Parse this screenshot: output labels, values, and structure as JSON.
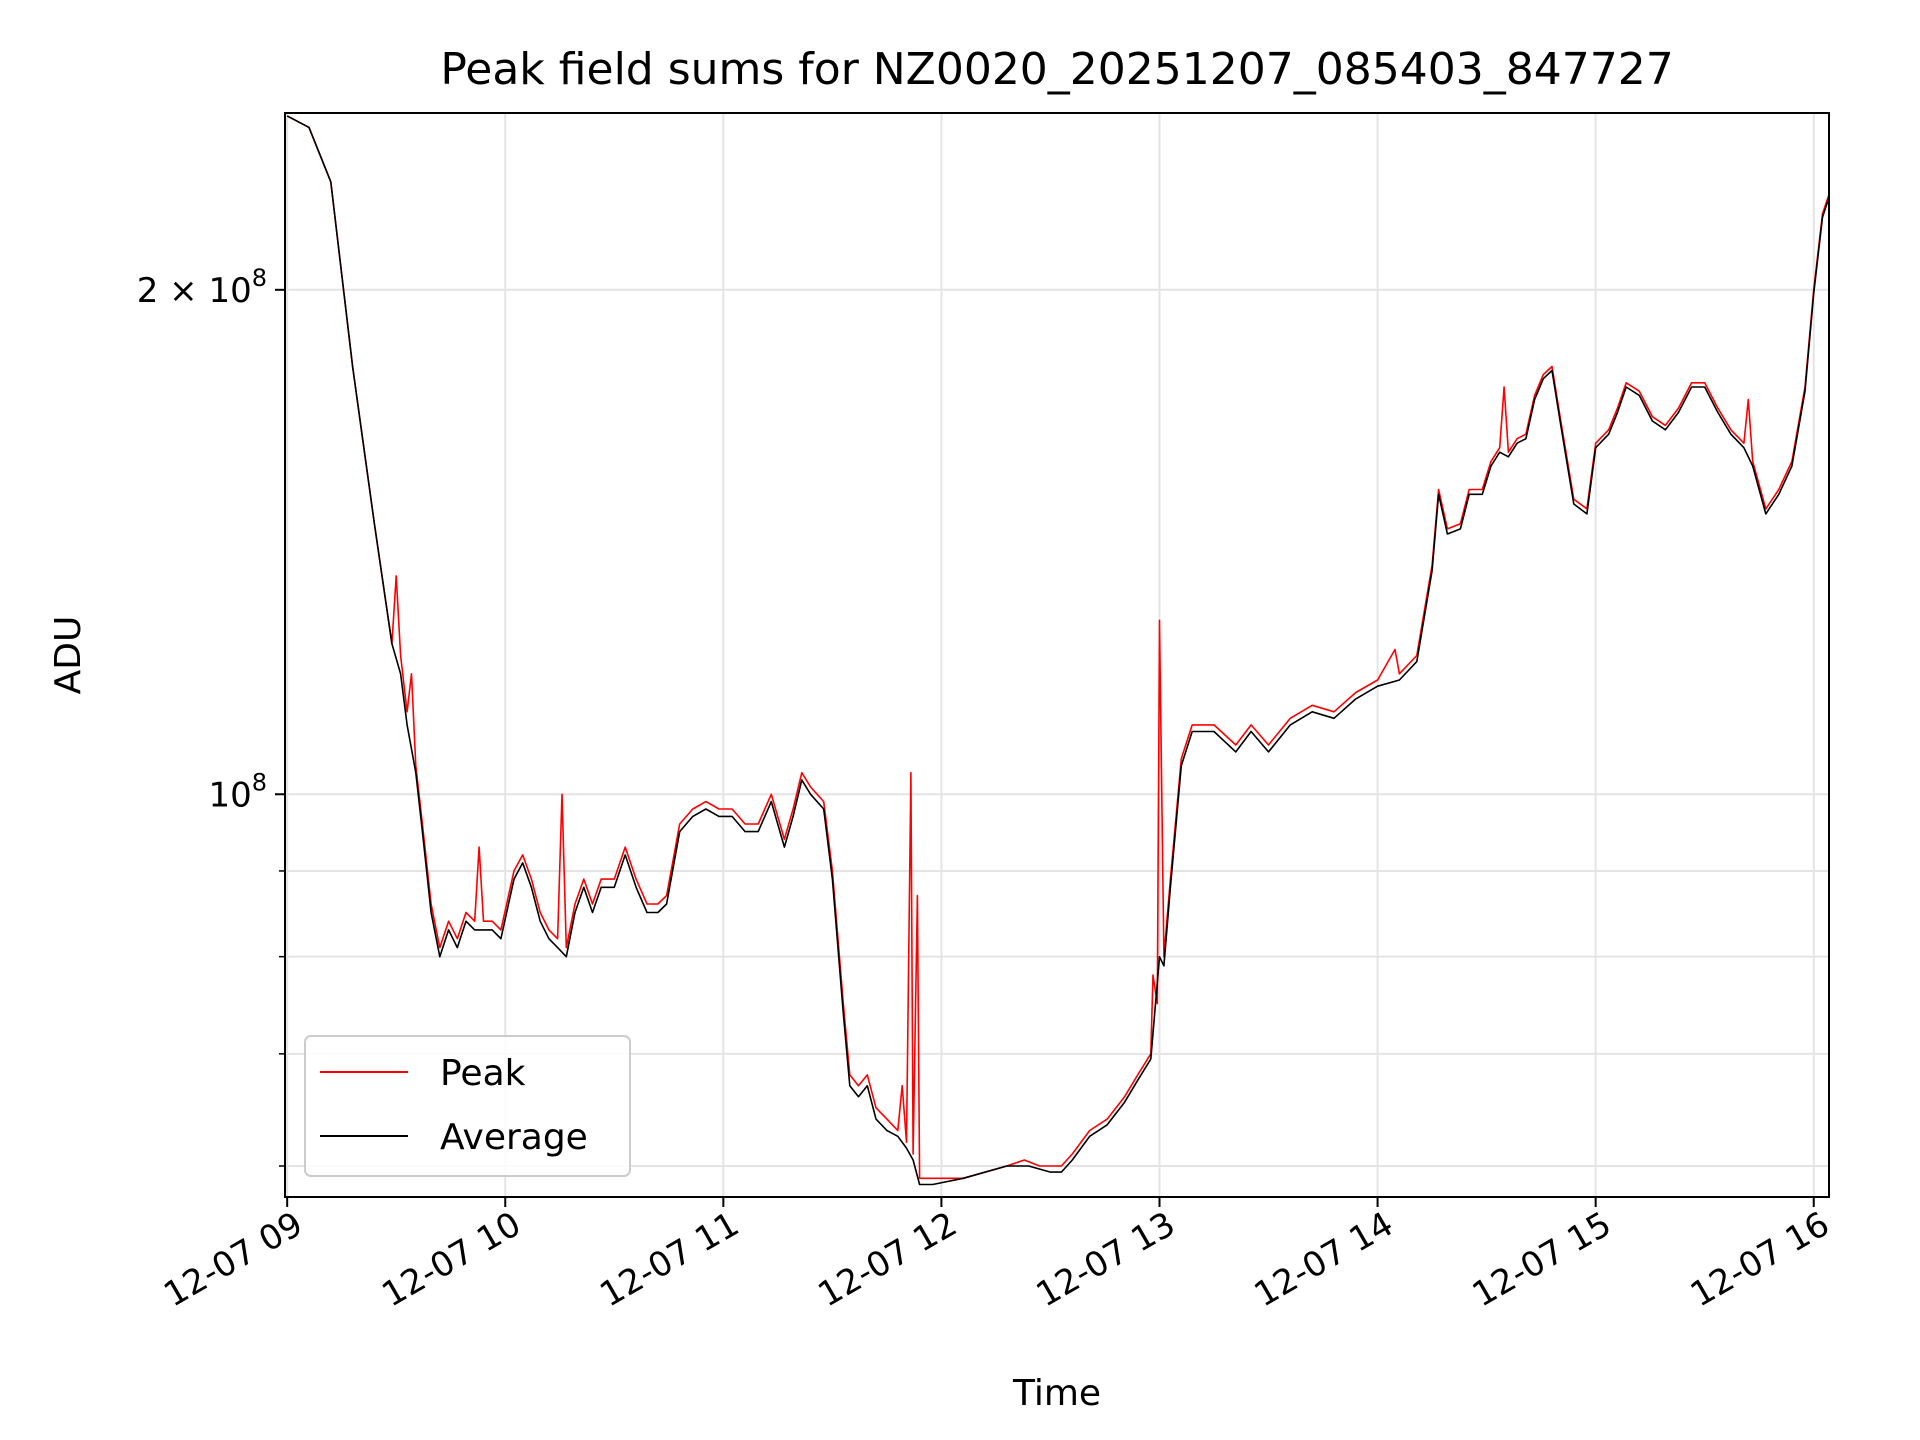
{
  "chart_data": {
    "type": "line",
    "title": "Peak field sums for NZ0020_20251207_085403_847727",
    "xlabel": "Time",
    "ylabel": "ADU",
    "y_scale": "log",
    "x_ticks": [
      "12-07 09",
      "12-07 10",
      "12-07 11",
      "12-07 12",
      "12-07 13",
      "12-07 14",
      "12-07 15",
      "12-07 16"
    ],
    "x_tick_hours": [
      9,
      10,
      11,
      12,
      13,
      14,
      15,
      16
    ],
    "xlim_hours": [
      8.99,
      16.07
    ],
    "y_major_ticks": [
      {
        "value": 200000000,
        "label": "2 × 10^8",
        "base": "2 × 10",
        "exp": "8"
      },
      {
        "value": 100000000,
        "label": "10^8",
        "base": "10",
        "exp": "8"
      }
    ],
    "y_minor_ticks": [
      60000000,
      70000000,
      80000000,
      90000000
    ],
    "ylim": [
      57500000,
      255000000
    ],
    "grid": true,
    "legend_position": "lower-left",
    "series": [
      {
        "name": "Peak",
        "color": "#ff0000",
        "points": [
          [
            9.0,
            254000000
          ],
          [
            9.1,
            250000000
          ],
          [
            9.2,
            232000000
          ],
          [
            9.3,
            180000000
          ],
          [
            9.4,
            145000000
          ],
          [
            9.48,
            123000000
          ],
          [
            9.5,
            135000000
          ],
          [
            9.52,
            121000000
          ],
          [
            9.55,
            112000000
          ],
          [
            9.57,
            118000000
          ],
          [
            9.59,
            104000000
          ],
          [
            9.62,
            96000000
          ],
          [
            9.66,
            86000000
          ],
          [
            9.7,
            81000000
          ],
          [
            9.74,
            84000000
          ],
          [
            9.78,
            82000000
          ],
          [
            9.82,
            85000000
          ],
          [
            9.86,
            84000000
          ],
          [
            9.88,
            93000000
          ],
          [
            9.9,
            84000000
          ],
          [
            9.94,
            84000000
          ],
          [
            9.98,
            83000000
          ],
          [
            10.04,
            90000000
          ],
          [
            10.08,
            92000000
          ],
          [
            10.12,
            89000000
          ],
          [
            10.16,
            85000000
          ],
          [
            10.2,
            83000000
          ],
          [
            10.24,
            82000000
          ],
          [
            10.26,
            100000000
          ],
          [
            10.28,
            81000000
          ],
          [
            10.32,
            86000000
          ],
          [
            10.36,
            89000000
          ],
          [
            10.4,
            86000000
          ],
          [
            10.44,
            89000000
          ],
          [
            10.5,
            89000000
          ],
          [
            10.55,
            93000000
          ],
          [
            10.6,
            89000000
          ],
          [
            10.65,
            86000000
          ],
          [
            10.7,
            86000000
          ],
          [
            10.74,
            87000000
          ],
          [
            10.8,
            96000000
          ],
          [
            10.86,
            98000000
          ],
          [
            10.92,
            99000000
          ],
          [
            10.98,
            98000000
          ],
          [
            11.04,
            98000000
          ],
          [
            11.1,
            96000000
          ],
          [
            11.16,
            96000000
          ],
          [
            11.22,
            100000000
          ],
          [
            11.28,
            94000000
          ],
          [
            11.32,
            98000000
          ],
          [
            11.36,
            103000000
          ],
          [
            11.4,
            101000000
          ],
          [
            11.46,
            99000000
          ],
          [
            11.5,
            90000000
          ],
          [
            11.55,
            75000000
          ],
          [
            11.58,
            68000000
          ],
          [
            11.62,
            67000000
          ],
          [
            11.66,
            68000000
          ],
          [
            11.7,
            65000000
          ],
          [
            11.75,
            64000000
          ],
          [
            11.8,
            63000000
          ],
          [
            11.82,
            67000000
          ],
          [
            11.84,
            62000000
          ],
          [
            11.86,
            103000000
          ],
          [
            11.87,
            61000000
          ],
          [
            11.89,
            87000000
          ],
          [
            11.9,
            59000000
          ],
          [
            11.96,
            59000000
          ],
          [
            12.1,
            59000000
          ],
          [
            12.3,
            60000000
          ],
          [
            12.38,
            60500000
          ],
          [
            12.45,
            60000000
          ],
          [
            12.5,
            60000000
          ],
          [
            12.55,
            60000000
          ],
          [
            12.6,
            61000000
          ],
          [
            12.68,
            63000000
          ],
          [
            12.76,
            64000000
          ],
          [
            12.84,
            66000000
          ],
          [
            12.9,
            68000000
          ],
          [
            12.96,
            70000000
          ],
          [
            12.97,
            78000000
          ],
          [
            12.99,
            75000000
          ],
          [
            13.0,
            127000000
          ],
          [
            13.02,
            80000000
          ],
          [
            13.05,
            89000000
          ],
          [
            13.1,
            105000000
          ],
          [
            13.15,
            110000000
          ],
          [
            13.25,
            110000000
          ],
          [
            13.35,
            107000000
          ],
          [
            13.42,
            110000000
          ],
          [
            13.5,
            107000000
          ],
          [
            13.6,
            111000000
          ],
          [
            13.7,
            113000000
          ],
          [
            13.8,
            112000000
          ],
          [
            13.9,
            115000000
          ],
          [
            14.0,
            117000000
          ],
          [
            14.08,
            122000000
          ],
          [
            14.1,
            118000000
          ],
          [
            14.18,
            121000000
          ],
          [
            14.25,
            137000000
          ],
          [
            14.28,
            152000000
          ],
          [
            14.32,
            144000000
          ],
          [
            14.38,
            145000000
          ],
          [
            14.42,
            152000000
          ],
          [
            14.48,
            152000000
          ],
          [
            14.52,
            158000000
          ],
          [
            14.56,
            161000000
          ],
          [
            14.58,
            175000000
          ],
          [
            14.6,
            160000000
          ],
          [
            14.64,
            163000000
          ],
          [
            14.68,
            164000000
          ],
          [
            14.72,
            173000000
          ],
          [
            14.76,
            178000000
          ],
          [
            14.8,
            180000000
          ],
          [
            14.84,
            167000000
          ],
          [
            14.9,
            150000000
          ],
          [
            14.96,
            148000000
          ],
          [
            15.0,
            162000000
          ],
          [
            15.06,
            165000000
          ],
          [
            15.1,
            170000000
          ],
          [
            15.14,
            176000000
          ],
          [
            15.2,
            174000000
          ],
          [
            15.26,
            168000000
          ],
          [
            15.32,
            166000000
          ],
          [
            15.38,
            170000000
          ],
          [
            15.44,
            176000000
          ],
          [
            15.5,
            176000000
          ],
          [
            15.56,
            170000000
          ],
          [
            15.62,
            165000000
          ],
          [
            15.68,
            162000000
          ],
          [
            15.7,
            172000000
          ],
          [
            15.72,
            158000000
          ],
          [
            15.78,
            148000000
          ],
          [
            15.84,
            152000000
          ],
          [
            15.9,
            158000000
          ],
          [
            15.96,
            175000000
          ],
          [
            16.0,
            200000000
          ],
          [
            16.04,
            222000000
          ],
          [
            16.07,
            228000000
          ]
        ]
      },
      {
        "name": "Average",
        "color": "#000000",
        "points": [
          [
            9.0,
            254000000
          ],
          [
            9.1,
            250000000
          ],
          [
            9.2,
            232000000
          ],
          [
            9.3,
            180000000
          ],
          [
            9.4,
            145000000
          ],
          [
            9.48,
            123000000
          ],
          [
            9.52,
            118000000
          ],
          [
            9.55,
            110000000
          ],
          [
            9.59,
            103000000
          ],
          [
            9.62,
            95000000
          ],
          [
            9.66,
            85000000
          ],
          [
            9.7,
            80000000
          ],
          [
            9.74,
            83000000
          ],
          [
            9.78,
            81000000
          ],
          [
            9.82,
            84000000
          ],
          [
            9.86,
            83000000
          ],
          [
            9.9,
            83000000
          ],
          [
            9.94,
            83000000
          ],
          [
            9.98,
            82000000
          ],
          [
            10.04,
            89000000
          ],
          [
            10.08,
            91000000
          ],
          [
            10.12,
            88000000
          ],
          [
            10.16,
            84000000
          ],
          [
            10.2,
            82000000
          ],
          [
            10.24,
            81000000
          ],
          [
            10.28,
            80000000
          ],
          [
            10.32,
            85000000
          ],
          [
            10.36,
            88000000
          ],
          [
            10.4,
            85000000
          ],
          [
            10.44,
            88000000
          ],
          [
            10.5,
            88000000
          ],
          [
            10.55,
            92000000
          ],
          [
            10.6,
            88000000
          ],
          [
            10.65,
            85000000
          ],
          [
            10.7,
            85000000
          ],
          [
            10.74,
            86000000
          ],
          [
            10.8,
            95000000
          ],
          [
            10.86,
            97000000
          ],
          [
            10.92,
            98000000
          ],
          [
            10.98,
            97000000
          ],
          [
            11.04,
            97000000
          ],
          [
            11.1,
            95000000
          ],
          [
            11.16,
            95000000
          ],
          [
            11.22,
            99000000
          ],
          [
            11.28,
            93000000
          ],
          [
            11.32,
            97000000
          ],
          [
            11.36,
            102000000
          ],
          [
            11.4,
            100000000
          ],
          [
            11.46,
            98000000
          ],
          [
            11.5,
            89000000
          ],
          [
            11.55,
            74000000
          ],
          [
            11.58,
            67000000
          ],
          [
            11.62,
            66000000
          ],
          [
            11.66,
            67000000
          ],
          [
            11.7,
            64000000
          ],
          [
            11.75,
            63000000
          ],
          [
            11.8,
            62500000
          ],
          [
            11.84,
            61500000
          ],
          [
            11.87,
            60500000
          ],
          [
            11.9,
            58500000
          ],
          [
            11.96,
            58500000
          ],
          [
            12.1,
            59000000
          ],
          [
            12.3,
            60000000
          ],
          [
            12.4,
            60000000
          ],
          [
            12.5,
            59500000
          ],
          [
            12.55,
            59500000
          ],
          [
            12.6,
            60500000
          ],
          [
            12.68,
            62500000
          ],
          [
            12.76,
            63500000
          ],
          [
            12.84,
            65500000
          ],
          [
            12.9,
            67500000
          ],
          [
            12.96,
            69500000
          ],
          [
            13.0,
            80000000
          ],
          [
            13.02,
            79000000
          ],
          [
            13.05,
            88000000
          ],
          [
            13.1,
            104000000
          ],
          [
            13.15,
            109000000
          ],
          [
            13.25,
            109000000
          ],
          [
            13.35,
            106000000
          ],
          [
            13.42,
            109000000
          ],
          [
            13.5,
            106000000
          ],
          [
            13.6,
            110000000
          ],
          [
            13.7,
            112000000
          ],
          [
            13.8,
            111000000
          ],
          [
            13.9,
            114000000
          ],
          [
            14.0,
            116000000
          ],
          [
            14.1,
            117000000
          ],
          [
            14.18,
            120000000
          ],
          [
            14.25,
            136000000
          ],
          [
            14.28,
            151000000
          ],
          [
            14.32,
            143000000
          ],
          [
            14.38,
            144000000
          ],
          [
            14.42,
            151000000
          ],
          [
            14.48,
            151000000
          ],
          [
            14.52,
            157000000
          ],
          [
            14.56,
            160000000
          ],
          [
            14.6,
            159000000
          ],
          [
            14.64,
            162000000
          ],
          [
            14.68,
            163000000
          ],
          [
            14.72,
            172000000
          ],
          [
            14.76,
            177000000
          ],
          [
            14.8,
            179000000
          ],
          [
            14.84,
            166000000
          ],
          [
            14.9,
            149000000
          ],
          [
            14.96,
            147000000
          ],
          [
            15.0,
            161000000
          ],
          [
            15.06,
            164000000
          ],
          [
            15.1,
            169000000
          ],
          [
            15.14,
            175000000
          ],
          [
            15.2,
            173000000
          ],
          [
            15.26,
            167000000
          ],
          [
            15.32,
            165000000
          ],
          [
            15.38,
            169000000
          ],
          [
            15.44,
            175000000
          ],
          [
            15.5,
            175000000
          ],
          [
            15.56,
            169000000
          ],
          [
            15.62,
            164000000
          ],
          [
            15.68,
            161000000
          ],
          [
            15.72,
            157000000
          ],
          [
            15.78,
            147000000
          ],
          [
            15.84,
            151000000
          ],
          [
            15.9,
            157000000
          ],
          [
            15.96,
            174000000
          ],
          [
            16.0,
            199000000
          ],
          [
            16.04,
            221000000
          ],
          [
            16.07,
            227000000
          ]
        ]
      }
    ]
  }
}
